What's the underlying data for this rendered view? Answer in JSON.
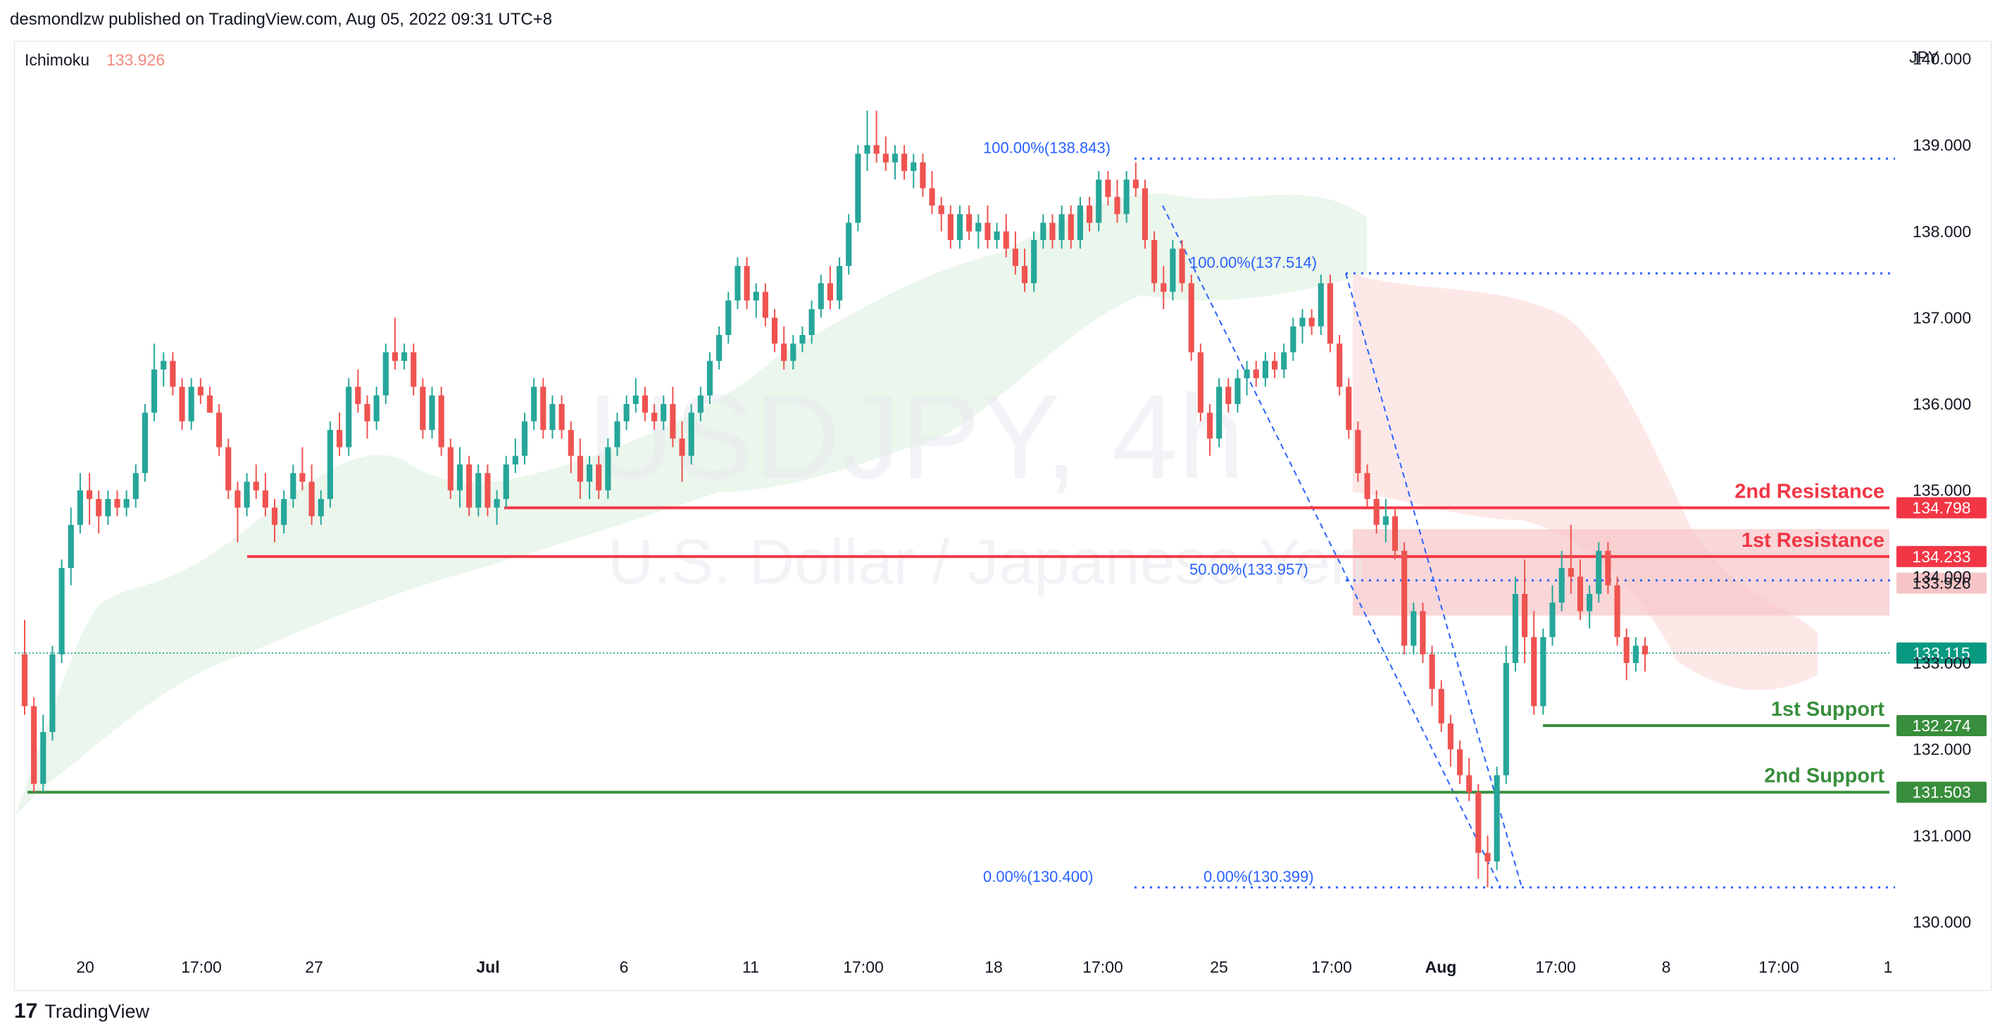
{
  "header": {
    "publisher_line": "desmondlzw published on TradingView.com, Aug 05, 2022 09:31 UTC+8"
  },
  "footer": {
    "brand": "TradingView",
    "logo_glyph": "17"
  },
  "colors": {
    "up": "#26a69a",
    "down": "#ef5350",
    "resistance": "#f23645",
    "support": "#388e3c",
    "fib": "#2962ff",
    "cloud_bull": "#e8f5e9",
    "cloud_bear": "#fde4e4",
    "price_line": "#089981",
    "ichimoku_text": "#f08a80"
  },
  "chart_data": {
    "type": "candlestick",
    "symbol_watermark": "USDJPY, 4h",
    "description_watermark": "U.S. Dollar / Japanese Yen",
    "indicator": {
      "name": "Ichimoku",
      "value": "133.926"
    },
    "currency": "JPY",
    "ylim": [
      129.6,
      140.2
    ],
    "y_ticks": [
      "140.000",
      "139.000",
      "138.000",
      "137.000",
      "136.000",
      "135.000",
      "134.000",
      "133.000",
      "132.000",
      "131.000",
      "130.000"
    ],
    "x_ticks": [
      {
        "label": "20",
        "bold": false
      },
      {
        "label": "17:00",
        "bold": false
      },
      {
        "label": "27",
        "bold": false
      },
      {
        "label": "Jul",
        "bold": true
      },
      {
        "label": "6",
        "bold": false
      },
      {
        "label": "11",
        "bold": false
      },
      {
        "label": "17:00",
        "bold": false
      },
      {
        "label": "18",
        "bold": false
      },
      {
        "label": "17:00",
        "bold": false
      },
      {
        "label": "25",
        "bold": false
      },
      {
        "label": "17:00",
        "bold": false
      },
      {
        "label": "Aug",
        "bold": true
      },
      {
        "label": "17:00",
        "bold": false
      },
      {
        "label": "8",
        "bold": false
      },
      {
        "label": "17:00",
        "bold": false
      },
      {
        "label": "1",
        "bold": false
      }
    ],
    "levels": [
      {
        "name": "2nd Resistance",
        "value": 134.798,
        "label": "134.798",
        "kind": "resistance"
      },
      {
        "name": "1st Resistance",
        "value": 134.233,
        "label": "134.233",
        "kind": "resistance"
      },
      {
        "name": "1st Support",
        "value": 132.274,
        "label": "132.274",
        "kind": "support"
      },
      {
        "name": "2nd Support",
        "value": 131.503,
        "label": "131.503",
        "kind": "support"
      }
    ],
    "last_price": {
      "value": 133.115,
      "label": "133.115"
    },
    "ichimoku_price": {
      "value": 133.926,
      "label": "133.926"
    },
    "fib_labels": [
      {
        "text": "100.00%(138.843)",
        "value": 138.843
      },
      {
        "text": "100.00%(137.514)",
        "value": 137.514
      },
      {
        "text": "50.00%(133.957)",
        "value": 133.957
      },
      {
        "text": "0.00%(130.399)",
        "value": 130.399
      },
      {
        "text": "0.00%(130.400)",
        "value": 130.4
      }
    ],
    "candles_ohlc": [
      [
        133.1,
        133.5,
        132.4,
        132.5
      ],
      [
        132.5,
        132.6,
        131.5,
        131.6
      ],
      [
        131.6,
        132.4,
        131.5,
        132.2
      ],
      [
        132.2,
        133.2,
        132.1,
        133.1
      ],
      [
        133.1,
        134.2,
        133.0,
        134.1
      ],
      [
        134.1,
        134.8,
        133.9,
        134.6
      ],
      [
        134.6,
        135.2,
        134.5,
        135.0
      ],
      [
        135.0,
        135.2,
        134.6,
        134.9
      ],
      [
        134.9,
        135.0,
        134.5,
        134.7
      ],
      [
        134.7,
        135.0,
        134.6,
        134.9
      ],
      [
        134.9,
        135.0,
        134.7,
        134.8
      ],
      [
        134.8,
        135.0,
        134.7,
        134.9
      ],
      [
        134.9,
        135.3,
        134.8,
        135.2
      ],
      [
        135.2,
        136.0,
        135.1,
        135.9
      ],
      [
        135.9,
        136.7,
        135.8,
        136.4
      ],
      [
        136.4,
        136.6,
        136.2,
        136.5
      ],
      [
        136.5,
        136.6,
        136.1,
        136.2
      ],
      [
        136.2,
        136.3,
        135.7,
        135.8
      ],
      [
        135.8,
        136.3,
        135.7,
        136.2
      ],
      [
        136.2,
        136.3,
        136.0,
        136.1
      ],
      [
        136.1,
        136.2,
        135.9,
        135.9
      ],
      [
        135.9,
        136.0,
        135.4,
        135.5
      ],
      [
        135.5,
        135.6,
        134.9,
        135.0
      ],
      [
        135.0,
        135.1,
        134.4,
        134.8
      ],
      [
        134.8,
        135.2,
        134.7,
        135.1
      ],
      [
        135.1,
        135.3,
        134.9,
        135.0
      ],
      [
        135.0,
        135.2,
        134.7,
        134.8
      ],
      [
        134.8,
        134.9,
        134.4,
        134.6
      ],
      [
        134.6,
        135.0,
        134.5,
        134.9
      ],
      [
        134.9,
        135.3,
        134.8,
        135.2
      ],
      [
        135.2,
        135.5,
        135.0,
        135.1
      ],
      [
        135.1,
        135.3,
        134.6,
        134.7
      ],
      [
        134.7,
        135.0,
        134.6,
        134.9
      ],
      [
        134.9,
        135.8,
        134.8,
        135.7
      ],
      [
        135.7,
        135.9,
        135.4,
        135.5
      ],
      [
        135.5,
        136.3,
        135.4,
        136.2
      ],
      [
        136.2,
        136.4,
        135.9,
        136.0
      ],
      [
        136.0,
        136.1,
        135.6,
        135.8
      ],
      [
        135.8,
        136.2,
        135.7,
        136.1
      ],
      [
        136.1,
        136.7,
        136.0,
        136.6
      ],
      [
        136.6,
        137.0,
        136.4,
        136.5
      ],
      [
        136.5,
        136.7,
        136.4,
        136.6
      ],
      [
        136.6,
        136.7,
        136.1,
        136.2
      ],
      [
        136.2,
        136.3,
        135.6,
        135.7
      ],
      [
        135.7,
        136.2,
        135.6,
        136.1
      ],
      [
        136.1,
        136.2,
        135.4,
        135.5
      ],
      [
        135.5,
        135.6,
        134.9,
        135.0
      ],
      [
        135.0,
        135.5,
        134.8,
        135.3
      ],
      [
        135.3,
        135.4,
        134.7,
        134.8
      ],
      [
        134.8,
        135.3,
        134.7,
        135.2
      ],
      [
        135.2,
        135.3,
        134.7,
        134.8
      ],
      [
        134.8,
        135.0,
        134.6,
        134.9
      ],
      [
        134.9,
        135.4,
        134.8,
        135.3
      ],
      [
        135.3,
        135.6,
        135.2,
        135.4
      ],
      [
        135.4,
        135.9,
        135.3,
        135.8
      ],
      [
        135.8,
        136.3,
        135.7,
        136.2
      ],
      [
        136.2,
        136.3,
        135.6,
        135.7
      ],
      [
        135.7,
        136.1,
        135.6,
        136.0
      ],
      [
        136.0,
        136.1,
        135.6,
        135.7
      ],
      [
        135.7,
        135.8,
        135.2,
        135.4
      ],
      [
        135.4,
        135.6,
        134.9,
        135.1
      ],
      [
        135.1,
        135.4,
        134.9,
        135.3
      ],
      [
        135.3,
        135.4,
        134.9,
        135.0
      ],
      [
        135.0,
        135.6,
        134.9,
        135.5
      ],
      [
        135.5,
        135.9,
        135.4,
        135.8
      ],
      [
        135.8,
        136.1,
        135.7,
        136.0
      ],
      [
        136.0,
        136.3,
        135.9,
        136.1
      ],
      [
        136.1,
        136.2,
        135.8,
        135.9
      ],
      [
        135.9,
        136.0,
        135.7,
        135.8
      ],
      [
        135.8,
        136.1,
        135.7,
        136.0
      ],
      [
        136.0,
        136.2,
        135.5,
        135.6
      ],
      [
        135.6,
        135.8,
        135.1,
        135.4
      ],
      [
        135.4,
        136.0,
        135.3,
        135.9
      ],
      [
        135.9,
        136.2,
        135.8,
        136.1
      ],
      [
        136.1,
        136.6,
        136.0,
        136.5
      ],
      [
        136.5,
        136.9,
        136.4,
        136.8
      ],
      [
        136.8,
        137.3,
        136.7,
        137.2
      ],
      [
        137.2,
        137.7,
        137.1,
        137.6
      ],
      [
        137.6,
        137.7,
        137.1,
        137.2
      ],
      [
        137.2,
        137.4,
        137.0,
        137.3
      ],
      [
        137.3,
        137.4,
        136.9,
        137.0
      ],
      [
        137.0,
        137.1,
        136.6,
        136.7
      ],
      [
        136.7,
        136.9,
        136.4,
        136.5
      ],
      [
        136.5,
        136.8,
        136.4,
        136.7
      ],
      [
        136.7,
        136.9,
        136.6,
        136.8
      ],
      [
        136.8,
        137.2,
        136.7,
        137.1
      ],
      [
        137.1,
        137.5,
        137.0,
        137.4
      ],
      [
        137.4,
        137.6,
        137.1,
        137.2
      ],
      [
        137.2,
        137.7,
        137.1,
        137.6
      ],
      [
        137.6,
        138.2,
        137.5,
        138.1
      ],
      [
        138.1,
        139.0,
        138.0,
        138.9
      ],
      [
        138.9,
        139.4,
        138.7,
        139.0
      ],
      [
        139.0,
        139.4,
        138.8,
        138.9
      ],
      [
        138.9,
        139.1,
        138.7,
        138.8
      ],
      [
        138.8,
        139.0,
        138.6,
        138.9
      ],
      [
        138.9,
        139.0,
        138.6,
        138.7
      ],
      [
        138.7,
        138.9,
        138.5,
        138.8
      ],
      [
        138.8,
        138.9,
        138.4,
        138.5
      ],
      [
        138.5,
        138.7,
        138.2,
        138.3
      ],
      [
        138.3,
        138.4,
        138.0,
        138.2
      ],
      [
        138.2,
        138.3,
        137.8,
        137.9
      ],
      [
        137.9,
        138.3,
        137.8,
        138.2
      ],
      [
        138.2,
        138.3,
        137.9,
        138.0
      ],
      [
        138.0,
        138.2,
        137.8,
        138.1
      ],
      [
        138.1,
        138.3,
        137.8,
        137.9
      ],
      [
        137.9,
        138.1,
        137.8,
        138.0
      ],
      [
        138.0,
        138.2,
        137.7,
        137.8
      ],
      [
        137.8,
        138.0,
        137.5,
        137.6
      ],
      [
        137.6,
        137.8,
        137.3,
        137.4
      ],
      [
        137.4,
        138.0,
        137.3,
        137.9
      ],
      [
        137.9,
        138.2,
        137.8,
        138.1
      ],
      [
        138.1,
        138.2,
        137.8,
        137.9
      ],
      [
        137.9,
        138.3,
        137.8,
        138.2
      ],
      [
        138.2,
        138.3,
        137.8,
        137.9
      ],
      [
        137.9,
        138.4,
        137.8,
        138.3
      ],
      [
        138.3,
        138.4,
        138.0,
        138.1
      ],
      [
        138.1,
        138.7,
        138.0,
        138.6
      ],
      [
        138.6,
        138.7,
        138.3,
        138.4
      ],
      [
        138.4,
        138.6,
        138.1,
        138.2
      ],
      [
        138.2,
        138.7,
        138.1,
        138.6
      ],
      [
        138.6,
        138.8,
        138.4,
        138.5
      ],
      [
        138.5,
        138.6,
        137.8,
        137.9
      ],
      [
        137.9,
        138.0,
        137.3,
        137.4
      ],
      [
        137.4,
        137.6,
        137.1,
        137.3
      ],
      [
        137.3,
        137.9,
        137.2,
        137.8
      ],
      [
        137.8,
        137.9,
        137.3,
        137.4
      ],
      [
        137.4,
        137.5,
        136.5,
        136.6
      ],
      [
        136.6,
        136.7,
        135.8,
        135.9
      ],
      [
        135.9,
        136.0,
        135.4,
        135.6
      ],
      [
        135.6,
        136.3,
        135.5,
        136.2
      ],
      [
        136.2,
        136.3,
        135.9,
        136.0
      ],
      [
        136.0,
        136.4,
        135.9,
        136.3
      ],
      [
        136.3,
        136.5,
        136.1,
        136.4
      ],
      [
        136.4,
        136.5,
        136.2,
        136.3
      ],
      [
        136.3,
        136.6,
        136.2,
        136.5
      ],
      [
        136.5,
        136.6,
        136.3,
        136.4
      ],
      [
        136.4,
        136.7,
        136.3,
        136.6
      ],
      [
        136.6,
        137.0,
        136.5,
        136.9
      ],
      [
        136.9,
        137.1,
        136.7,
        137.0
      ],
      [
        137.0,
        137.1,
        136.8,
        136.9
      ],
      [
        136.9,
        137.5,
        136.8,
        137.4
      ],
      [
        137.4,
        137.5,
        136.6,
        136.7
      ],
      [
        136.7,
        136.8,
        136.1,
        136.2
      ],
      [
        136.2,
        136.3,
        135.6,
        135.7
      ],
      [
        135.7,
        135.8,
        135.1,
        135.2
      ],
      [
        135.2,
        135.3,
        134.8,
        134.9
      ],
      [
        134.9,
        135.0,
        134.5,
        134.6
      ],
      [
        134.6,
        134.9,
        134.4,
        134.7
      ],
      [
        134.7,
        134.8,
        134.2,
        134.3
      ],
      [
        134.3,
        134.4,
        133.1,
        133.2
      ],
      [
        133.2,
        133.7,
        133.1,
        133.6
      ],
      [
        133.6,
        133.7,
        133.0,
        133.1
      ],
      [
        133.1,
        133.2,
        132.5,
        132.7
      ],
      [
        132.7,
        132.8,
        132.2,
        132.3
      ],
      [
        132.3,
        132.4,
        131.8,
        132.0
      ],
      [
        132.0,
        132.1,
        131.6,
        131.7
      ],
      [
        131.7,
        131.9,
        131.4,
        131.5
      ],
      [
        131.5,
        131.6,
        130.5,
        130.8
      ],
      [
        130.8,
        131.0,
        130.4,
        130.7
      ],
      [
        130.7,
        131.8,
        130.6,
        131.7
      ],
      [
        131.7,
        133.2,
        131.6,
        133.0
      ],
      [
        133.0,
        134.0,
        132.9,
        133.8
      ],
      [
        133.8,
        134.2,
        133.0,
        133.3
      ],
      [
        133.3,
        133.6,
        132.4,
        132.5
      ],
      [
        132.5,
        133.4,
        132.4,
        133.3
      ],
      [
        133.3,
        133.9,
        133.2,
        133.7
      ],
      [
        133.7,
        134.3,
        133.6,
        134.1
      ],
      [
        134.1,
        134.6,
        133.8,
        134.0
      ],
      [
        134.0,
        134.2,
        133.5,
        133.6
      ],
      [
        133.6,
        133.9,
        133.4,
        133.8
      ],
      [
        133.8,
        134.4,
        133.7,
        134.3
      ],
      [
        134.3,
        134.4,
        133.8,
        133.9
      ],
      [
        133.9,
        134.0,
        133.2,
        133.3
      ],
      [
        133.3,
        133.4,
        132.8,
        133.0
      ],
      [
        133.0,
        133.3,
        132.9,
        133.2
      ],
      [
        133.2,
        133.3,
        132.9,
        133.1
      ]
    ]
  }
}
